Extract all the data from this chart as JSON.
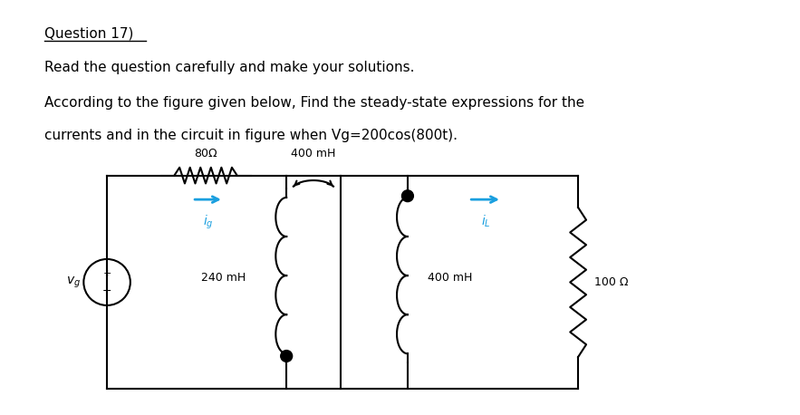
{
  "title_text": "Question 17)",
  "line1": "Read the question carefully and make your solutions.",
  "line2": "According to the figure given below, Find the steady-state expressions for the",
  "line3": "currents and in the circuit in figure when Vg=200cos(800t).",
  "background_color": "#ffffff",
  "text_color": "#000000",
  "circuit_color": "#000000",
  "arrow_color": "#1a9fdf",
  "resistor_80": "80Ω",
  "resistor_100": "100 Ω",
  "inductor_240": "240 mH",
  "inductor_400_mutual": "400 mH",
  "inductor_400_right": "400 mH",
  "label_ig": "$i_g$",
  "label_iL": "$i_L$",
  "label_vg": "$v_g$",
  "fontsize_text": 11,
  "fontsize_circuit": 9,
  "lw_circuit": 1.5
}
